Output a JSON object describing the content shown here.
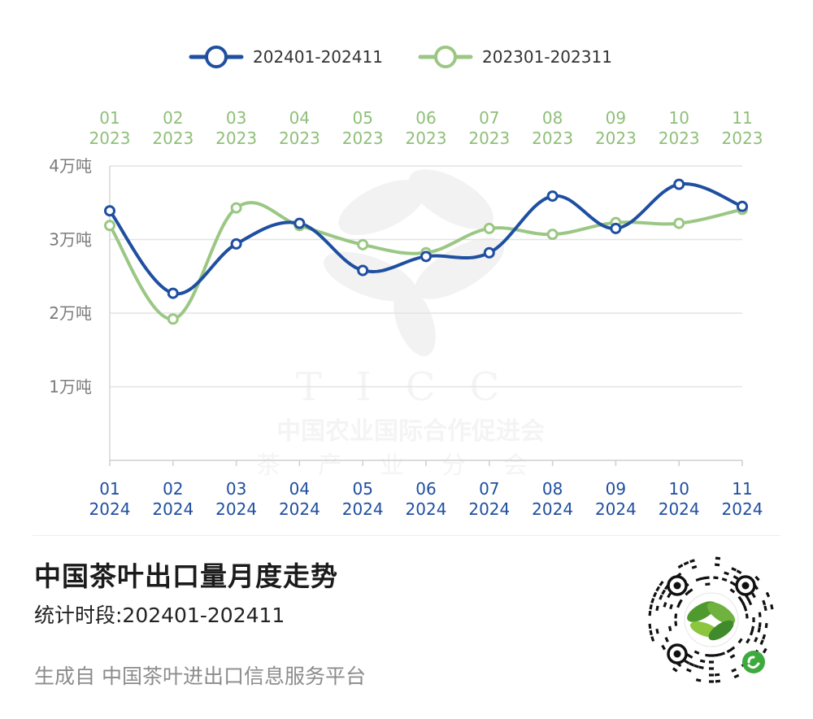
{
  "chart_data": {
    "type": "line",
    "smooth": true,
    "categories": [
      "01",
      "02",
      "03",
      "04",
      "05",
      "06",
      "07",
      "08",
      "09",
      "10",
      "11"
    ],
    "x_top_labels": [
      [
        "01",
        "2023"
      ],
      [
        "02",
        "2023"
      ],
      [
        "03",
        "2023"
      ],
      [
        "04",
        "2023"
      ],
      [
        "05",
        "2023"
      ],
      [
        "06",
        "2023"
      ],
      [
        "07",
        "2023"
      ],
      [
        "08",
        "2023"
      ],
      [
        "09",
        "2023"
      ],
      [
        "10",
        "2023"
      ],
      [
        "11",
        "2023"
      ]
    ],
    "x_bottom_labels": [
      [
        "01",
        "2024"
      ],
      [
        "02",
        "2024"
      ],
      [
        "03",
        "2024"
      ],
      [
        "04",
        "2024"
      ],
      [
        "05",
        "2024"
      ],
      [
        "06",
        "2024"
      ],
      [
        "07",
        "2024"
      ],
      [
        "08",
        "2024"
      ],
      [
        "09",
        "2024"
      ],
      [
        "10",
        "2024"
      ],
      [
        "11",
        "2024"
      ]
    ],
    "y_ticks": [
      {
        "value": 1,
        "label": "1万吨"
      },
      {
        "value": 2,
        "label": "2万吨"
      },
      {
        "value": 3,
        "label": "3万吨"
      },
      {
        "value": 4,
        "label": "4万吨"
      }
    ],
    "ylim": [
      0,
      4
    ],
    "y_unit": "万吨",
    "grid": true,
    "legend_position": "top",
    "series": [
      {
        "name": "202401-202411",
        "color": "#1f4fa0",
        "values": [
          3.39,
          2.27,
          2.94,
          3.22,
          2.58,
          2.77,
          2.82,
          3.59,
          3.15,
          3.75,
          3.45
        ]
      },
      {
        "name": "202301-202311",
        "color": "#9bc784",
        "values": [
          3.19,
          1.92,
          3.43,
          3.19,
          2.93,
          2.82,
          3.15,
          3.07,
          3.23,
          3.22,
          3.41
        ]
      }
    ],
    "title": "中国茶叶出口量月度走势",
    "subtitle": "统计时段:202401-202411"
  },
  "watermark": {
    "letters": "TICC",
    "line1": "中国农业国际合作促进会",
    "line2": "茶产业分会"
  },
  "footer": {
    "title": "中国茶叶出口量月度走势",
    "period": "统计时段:202401-202411",
    "source": "生成自 中国茶叶进出口信息服务平台"
  },
  "colors": {
    "axis_text_gray": "#7b7b7b",
    "top_label_green": "#8fbf79",
    "bottom_label_blue": "#1f4fa0",
    "grid": "#e3e3e3"
  }
}
